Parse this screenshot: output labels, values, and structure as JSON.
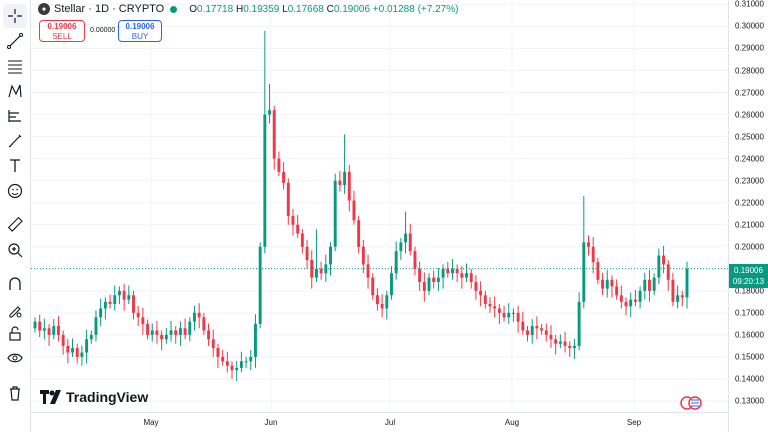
{
  "legend": {
    "symbol_line": "Stellar · 1D · CRYPTO",
    "open_label": "O",
    "open": "0.17718",
    "high_label": "H",
    "high": "0.19359",
    "low_label": "L",
    "low": "0.17668",
    "close_label": "C",
    "close": "0.19006",
    "change": "+0.01288 (+7.27%)"
  },
  "trade": {
    "sell_price": "0.19006",
    "sell_label": "SELL",
    "spread": "0.00000",
    "buy_price": "0.19006",
    "buy_label": "BUY"
  },
  "price_axis": {
    "ticks": [
      "0.31000",
      "0.30000",
      "0.29000",
      "0.28000",
      "0.27000",
      "0.26000",
      "0.25000",
      "0.24000",
      "0.23000",
      "0.22000",
      "0.21000",
      "0.20000",
      "0.18000",
      "0.17000",
      "0.16000",
      "0.15000",
      "0.14000",
      "0.13000"
    ],
    "current_price": "0.19006",
    "countdown": "09:20:13"
  },
  "time_axis": {
    "labels": [
      "May",
      "Jun",
      "Jul",
      "Aug",
      "Sep"
    ]
  },
  "branding": {
    "logo_text": "TradingView"
  },
  "colors": {
    "up": "#089981",
    "down": "#f23645",
    "grid": "#f0f3fa"
  },
  "chart_data": {
    "type": "candlestick",
    "x": [
      "2024-04-10",
      "2024-09-13"
    ],
    "y_range": [
      0.125,
      0.312
    ],
    "current_price": 0.19006,
    "close_series": [
      0.166,
      0.162,
      0.163,
      0.16,
      0.164,
      0.16,
      0.155,
      0.152,
      0.154,
      0.15,
      0.152,
      0.158,
      0.16,
      0.168,
      0.172,
      0.175,
      0.174,
      0.178,
      0.18,
      0.176,
      0.178,
      0.17,
      0.168,
      0.165,
      0.16,
      0.162,
      0.16,
      0.158,
      0.16,
      0.162,
      0.16,
      0.163,
      0.16,
      0.166,
      0.17,
      0.168,
      0.162,
      0.158,
      0.154,
      0.15,
      0.148,
      0.146,
      0.144,
      0.145,
      0.148,
      0.148,
      0.15,
      0.165,
      0.2,
      0.26,
      0.262,
      0.24,
      0.234,
      0.229,
      0.214,
      0.21,
      0.206,
      0.2,
      0.194,
      0.186,
      0.19,
      0.188,
      0.192,
      0.2,
      0.23,
      0.228,
      0.234,
      0.221,
      0.212,
      0.2,
      0.192,
      0.186,
      0.178,
      0.174,
      0.172,
      0.178,
      0.188,
      0.198,
      0.202,
      0.206,
      0.198,
      0.19,
      0.184,
      0.18,
      0.186,
      0.184,
      0.186,
      0.19,
      0.188,
      0.19,
      0.188,
      0.186,
      0.188,
      0.184,
      0.18,
      0.178,
      0.174,
      0.173,
      0.172,
      0.17,
      0.168,
      0.17,
      0.17,
      0.166,
      0.162,
      0.16,
      0.164,
      0.163,
      0.162,
      0.16,
      0.158,
      0.156,
      0.157,
      0.155,
      0.154,
      0.155,
      0.175,
      0.202,
      0.2,
      0.193,
      0.185,
      0.181,
      0.185,
      0.182,
      0.178,
      0.175,
      0.173,
      0.176,
      0.175,
      0.18,
      0.185,
      0.18,
      0.186,
      0.196,
      0.192,
      0.185,
      0.175,
      0.178,
      0.177,
      0.19
    ]
  }
}
